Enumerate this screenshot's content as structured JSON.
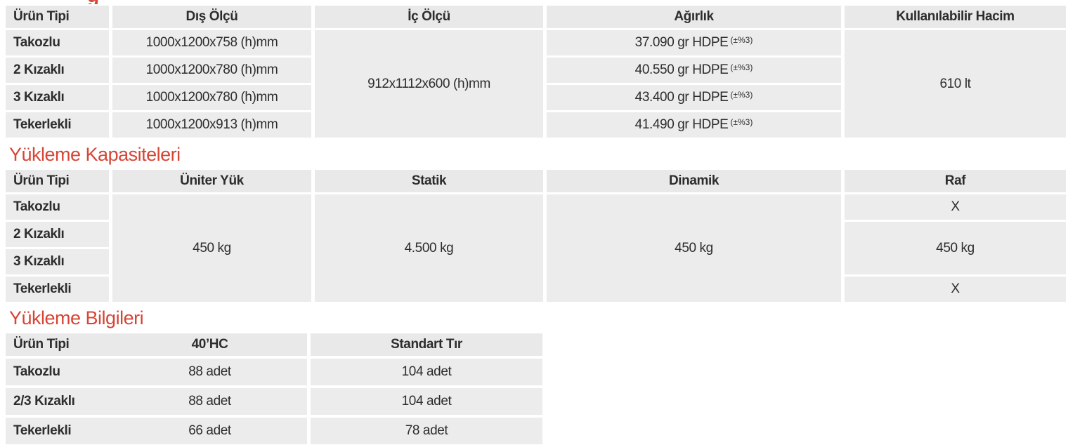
{
  "colors": {
    "title_red": "#d64536",
    "cell_bg": "#ececec",
    "header_bg": "#e9e9e9",
    "text": "#2d2d2d",
    "page_bg": "#ffffff"
  },
  "cropped_title_fragment": "g",
  "table1": {
    "headers": [
      "Ürün Tipi",
      "Dış Ölçü",
      "İç Ölçü",
      "Ağırlık",
      "Kullanılabilir Hacim"
    ],
    "row_labels": [
      "Takozlu",
      "2 Kızaklı",
      "3 Kızaklı",
      "Tekerlekli"
    ],
    "dis_olcu": [
      "1000x1200x758 (h)mm",
      "1000x1200x780 (h)mm",
      "1000x1200x780 (h)mm",
      "1000x1200x913 (h)mm"
    ],
    "ic_olcu": "912x1112x600 (h)mm",
    "agirlik": [
      "37.090 gr HDPE",
      "40.550 gr HDPE",
      "43.400 gr HDPE",
      "41.490 gr HDPE"
    ],
    "agirlik_tolerance": "(±%3)",
    "hacim": "610 lt"
  },
  "table2": {
    "title": "Yükleme Kapasiteleri",
    "headers": [
      "Ürün Tipi",
      "Üniter Yük",
      "Statik",
      "Dinamik",
      "Raf"
    ],
    "row_labels": [
      "Takozlu",
      "2 Kızaklı",
      "3 Kızaklı",
      "Tekerlekli"
    ],
    "uniter_yuk": "450 kg",
    "statik": "4.500 kg",
    "dinamik": "450 kg",
    "raf": [
      "X",
      "450 kg",
      "X"
    ]
  },
  "table3": {
    "title": "Yükleme Bilgileri",
    "headers": [
      "Ürün Tipi",
      "40’HC",
      "Standart Tır"
    ],
    "rows": [
      {
        "label": "Takozlu",
        "hc40": "88 adet",
        "standart_tir": "104 adet"
      },
      {
        "label": "2/3 Kızaklı",
        "hc40": "88 adet",
        "standart_tir": "104 adet"
      },
      {
        "label": "Tekerlekli",
        "hc40": "66 adet",
        "standart_tir": "78 adet"
      }
    ]
  }
}
